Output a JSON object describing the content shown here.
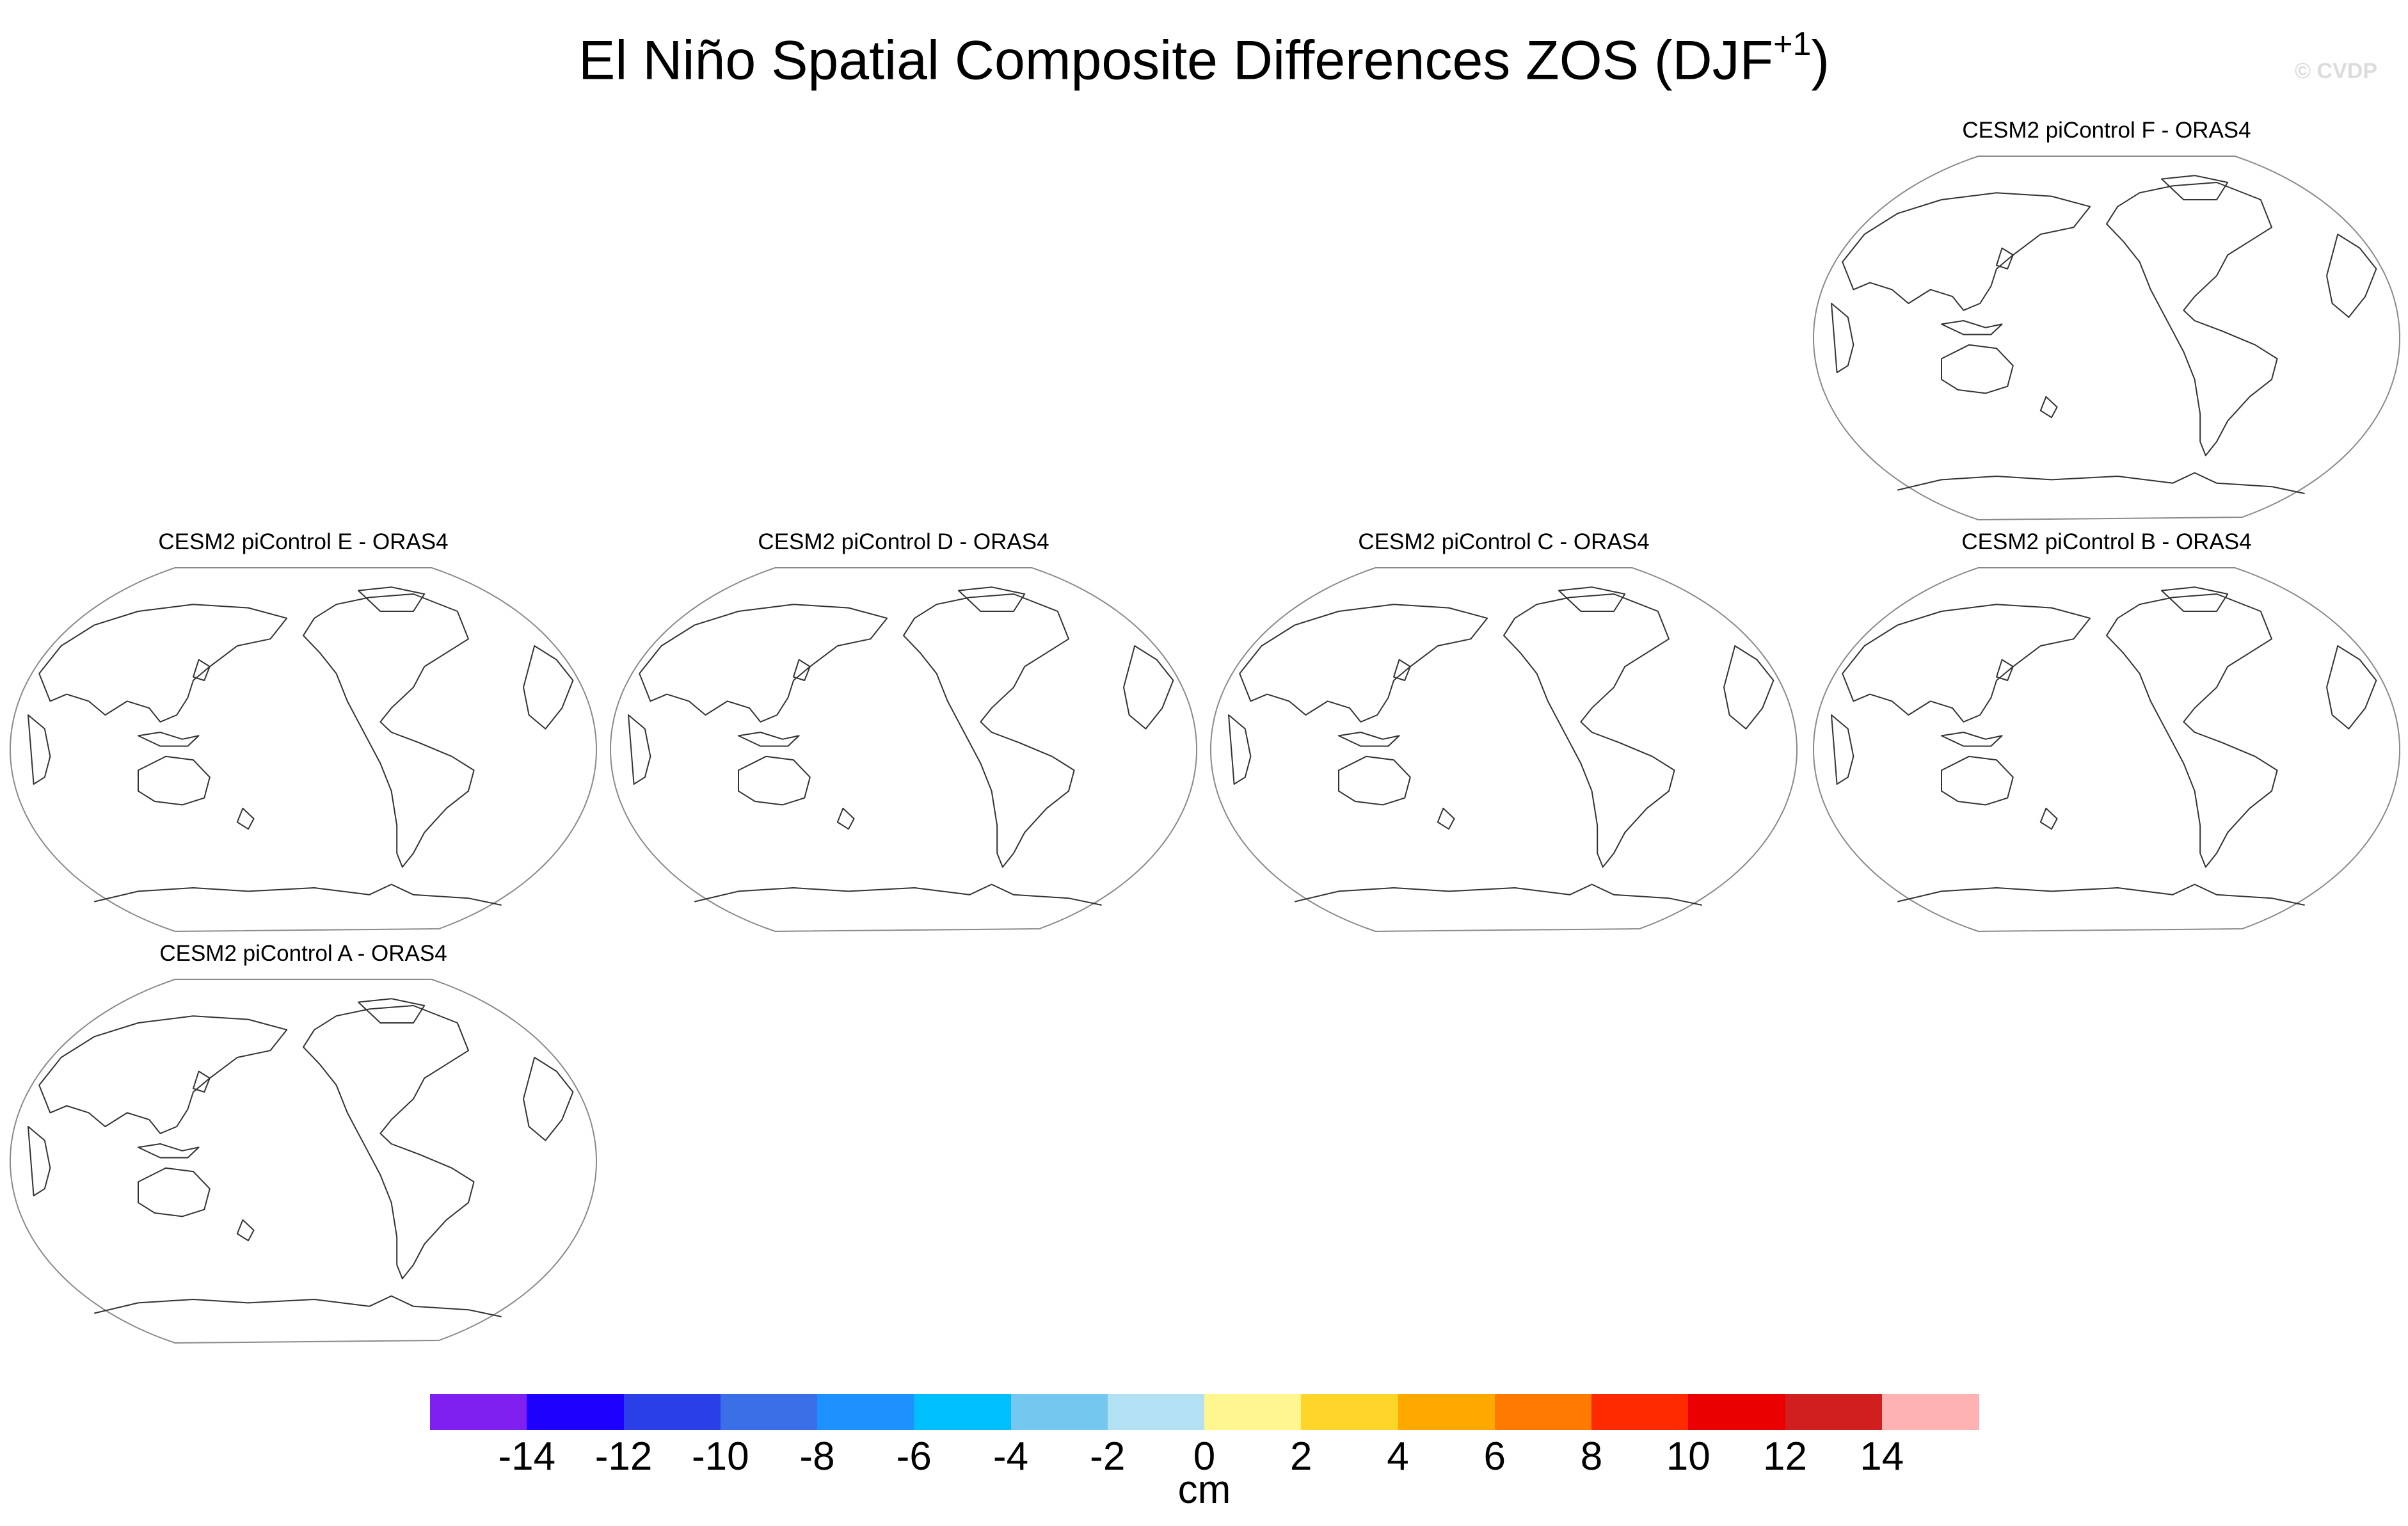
{
  "title": {
    "main": "El Niño Spatial Composite Differences ZOS (DJF",
    "superscript": "+1",
    "close": ")"
  },
  "copyright": "© CVDP",
  "panels": [
    {
      "id": "F",
      "title": "CESM2 piControl F - ORAS4"
    },
    {
      "id": "E",
      "title": "CESM2 piControl E - ORAS4"
    },
    {
      "id": "D",
      "title": "CESM2 piControl D - ORAS4"
    },
    {
      "id": "C",
      "title": "CESM2 piControl C - ORAS4"
    },
    {
      "id": "B",
      "title": "CESM2 piControl B - ORAS4"
    },
    {
      "id": "A",
      "title": "CESM2 piControl A - ORAS4"
    }
  ],
  "colorbar": {
    "colors": [
      "#7f1ff0",
      "#1e00ff",
      "#2a3fe6",
      "#3a6fe8",
      "#1e90ff",
      "#00bfff",
      "#74c7ee",
      "#b4e0f4",
      "#fff68f",
      "#ffd52a",
      "#ffa800",
      "#ff7a00",
      "#ff2a00",
      "#ea0000",
      "#d11f1f",
      "#ffb2b2"
    ],
    "tick_labels": [
      "-14",
      "-12",
      "-10",
      "-8",
      "-6",
      "-4",
      "-2",
      "0",
      "2",
      "4",
      "6",
      "8",
      "10",
      "12",
      "14"
    ],
    "unit": "cm"
  }
}
